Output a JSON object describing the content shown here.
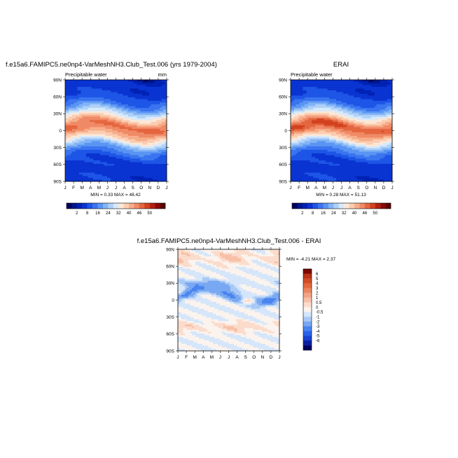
{
  "colors": {
    "full_field": [
      "#020060",
      "#00168c",
      "#0022b4",
      "#0a34d2",
      "#1d55e6",
      "#3a74ef",
      "#5a95f3",
      "#82b4f6",
      "#aed1f8",
      "#d8e9fa",
      "#fbe8d8",
      "#fbcdb1",
      "#f7ad8a",
      "#f08a66",
      "#e4663f",
      "#d2421f",
      "#b42010",
      "#8a0a06",
      "#5c0000"
    ],
    "difference": [
      "#020060",
      "#0a1f9e",
      "#1a43d4",
      "#2a62e8",
      "#4a84ef",
      "#79a8f2",
      "#a9c9f5",
      "#d5e6fa",
      "#fbf3ee",
      "#fbdccc",
      "#f7c0a7",
      "#f2a285",
      "#ec8560",
      "#e2683f",
      "#d24d27",
      "#b8341a",
      "#7a0a00"
    ]
  },
  "chart_data": [
    {
      "type": "heatmap",
      "title": "f.e15a6.FAMIPC5.ne0np4-VarMeshNH3.Club_Test.006 (yrs 1979-2004)",
      "subtitle_left": "Precipitable water",
      "units": "mm",
      "x_ticks": [
        "J",
        "F",
        "M",
        "A",
        "M",
        "J",
        "J",
        "A",
        "S",
        "O",
        "N",
        "D",
        "J"
      ],
      "y_ticks": [
        "90N",
        "60N",
        "30N",
        "0",
        "30S",
        "60S",
        "90S"
      ],
      "stats": "MIN =   0.33 MAX =   48.42",
      "colorbar_labels": [
        "2",
        "8",
        "16",
        "24",
        "32",
        "40",
        "46",
        "50"
      ],
      "min": 0.33,
      "max": 48.42
    },
    {
      "type": "heatmap",
      "title": "ERAI",
      "subtitle_left": "Precipitable water",
      "x_ticks": [
        "J",
        "F",
        "M",
        "A",
        "M",
        "J",
        "J",
        "A",
        "S",
        "O",
        "N",
        "D",
        "J"
      ],
      "y_ticks": [
        "90N",
        "60N",
        "30N",
        "0",
        "30S",
        "60S",
        "90S"
      ],
      "stats": "MIN =   0.28 MAX =   51.13",
      "colorbar_labels": [
        "2",
        "8",
        "16",
        "24",
        "32",
        "40",
        "46",
        "50"
      ],
      "min": 0.28,
      "max": 51.13
    },
    {
      "type": "heatmap",
      "title": "f.e15a6.FAMIPC5.ne0np4-VarMeshNH3.Club_Test.006 - ERAI",
      "x_ticks": [
        "J",
        "F",
        "M",
        "A",
        "M",
        "J",
        "J",
        "A",
        "S",
        "O",
        "N",
        "D",
        "J"
      ],
      "y_ticks": [
        "90N",
        "60N",
        "30N",
        "0",
        "30S",
        "60S",
        "90S"
      ],
      "stats": "MIN =  -4.21 MAX =   2.37",
      "colorbar_labels": [
        "6",
        "5",
        "4",
        "3",
        "2",
        "1",
        "0.5",
        "0",
        "-0.5",
        "-1",
        "-2",
        "-3",
        "-4",
        "-5",
        "-6"
      ],
      "min": -4.21,
      "max": 2.37
    }
  ]
}
